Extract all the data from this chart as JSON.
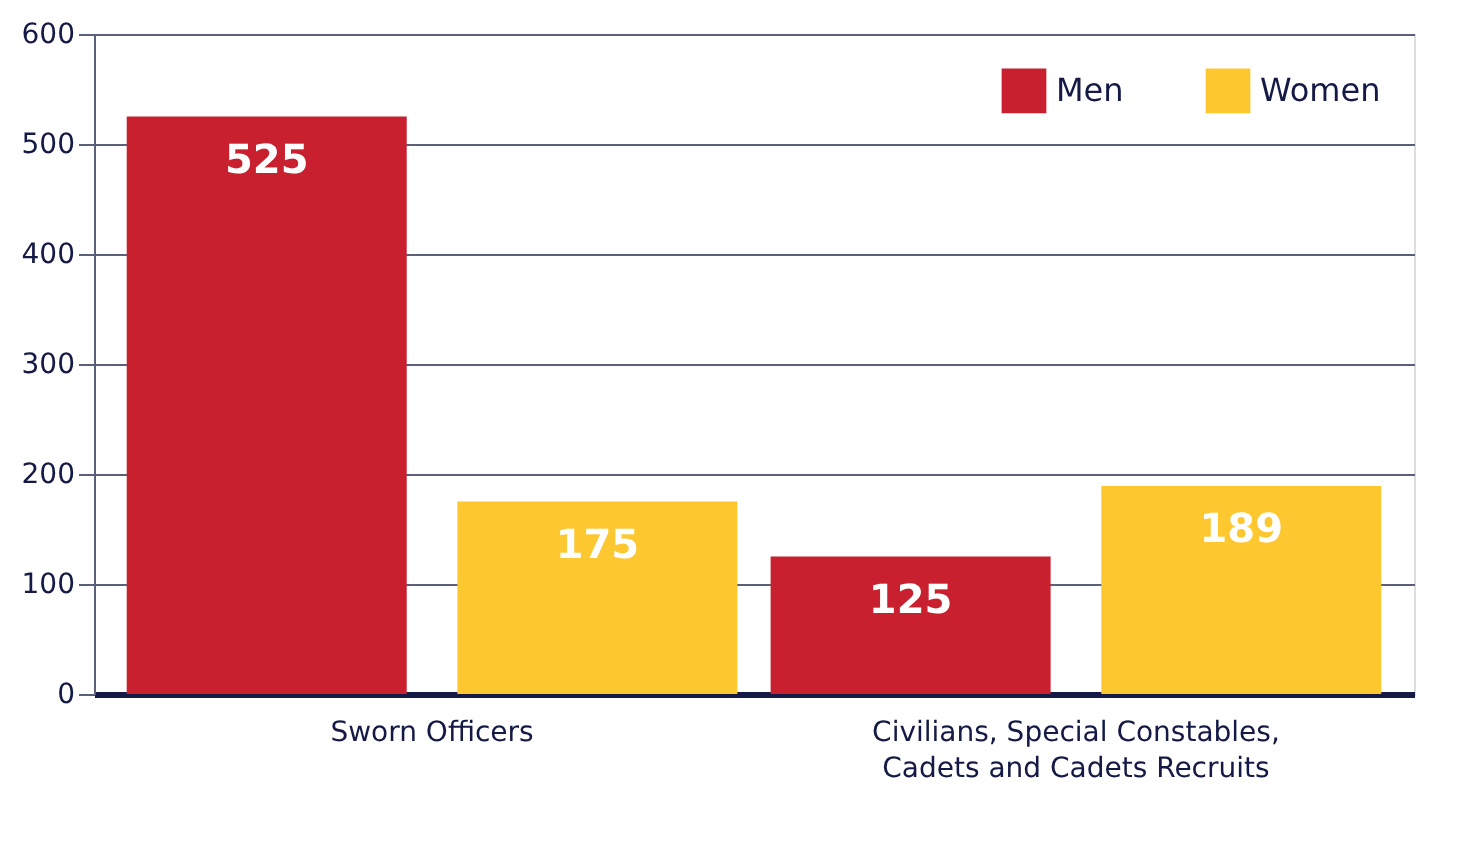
{
  "chart_data": {
    "type": "bar",
    "categories": [
      "Sworn Officers",
      "Civilians, Special Constables,\nCadets and Cadets Recruits"
    ],
    "series": [
      {
        "name": "Men",
        "color": "#c8202f",
        "values": [
          525,
          125
        ]
      },
      {
        "name": "Women",
        "color": "#fdc72f",
        "values": [
          175,
          189
        ]
      }
    ],
    "ylim": [
      0,
      600
    ],
    "yticks": [
      0,
      100,
      200,
      300,
      400,
      500,
      600
    ],
    "grid": "y",
    "legend": "top right",
    "data_labels": true
  }
}
